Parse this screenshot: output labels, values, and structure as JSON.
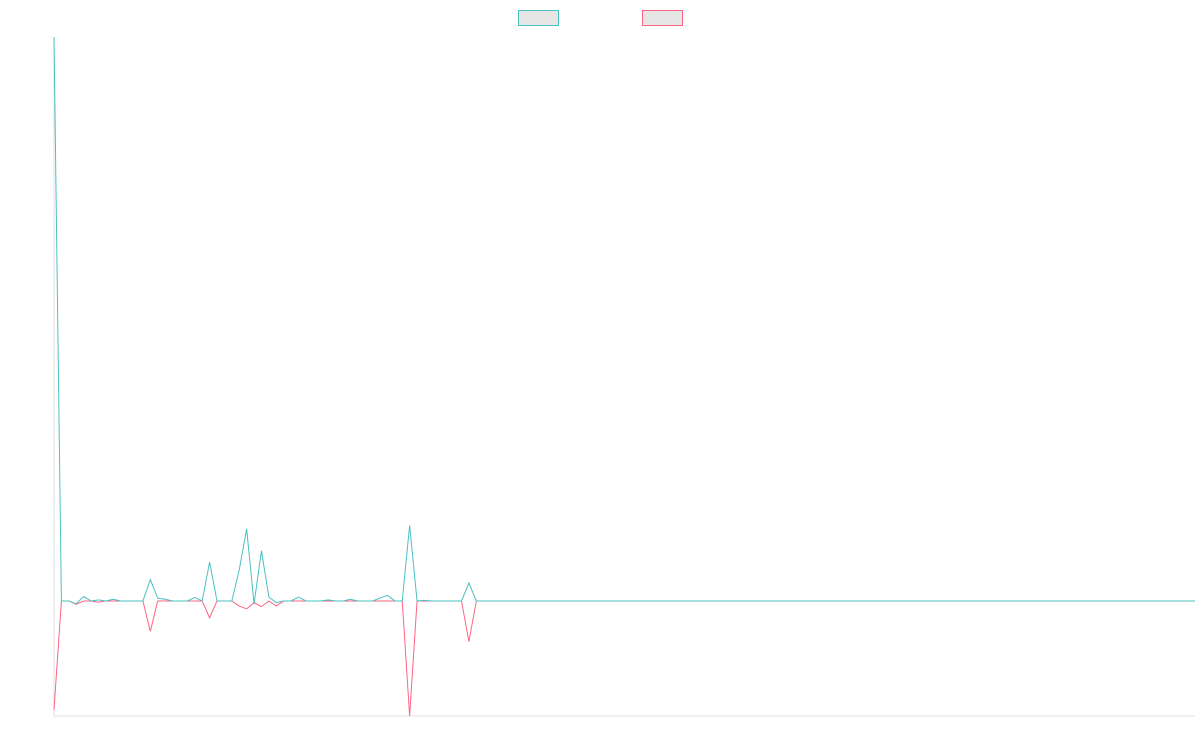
{
  "chart_data": {
    "type": "line",
    "x": [
      0,
      1,
      2,
      3,
      4,
      5,
      6,
      7,
      8,
      9,
      12,
      13,
      14,
      15,
      16,
      18,
      19,
      20,
      21,
      22,
      24,
      25,
      26,
      27,
      28,
      29,
      30,
      31,
      32,
      33,
      34,
      36,
      37,
      38,
      39,
      40,
      41,
      43,
      44,
      45,
      46,
      47,
      48,
      49,
      50,
      51,
      55,
      56,
      57,
      154
    ],
    "xlim": [
      0,
      154
    ],
    "ylim": [
      -20.4,
      100
    ],
    "grid": false,
    "legend": "top",
    "series": [
      {
        "color": "#4bc0c0",
        "values": [
          100,
          0,
          0,
          -0.5,
          0.8,
          0,
          0.2,
          0,
          0.3,
          0,
          0,
          3.8,
          0.5,
          0.3,
          0,
          0,
          0.6,
          0,
          6.9,
          0,
          0,
          5.5,
          12.8,
          -0.5,
          8.9,
          0.7,
          -0.3,
          0,
          0,
          0.7,
          0,
          0,
          0.2,
          0,
          0,
          0.3,
          0,
          0,
          0.5,
          1.0,
          0,
          0,
          13.4,
          0,
          0.1,
          0,
          0,
          3.2,
          0,
          0
        ]
      },
      {
        "color": "#ff6384",
        "values": [
          -19.3,
          0,
          0,
          -0.6,
          0,
          0,
          -0.2,
          0,
          0,
          0,
          0,
          -5.4,
          0,
          0,
          0,
          0,
          0,
          0,
          -3,
          0,
          0,
          -0.9,
          -1.4,
          -0.3,
          -1,
          0,
          -0.9,
          0,
          0,
          0,
          0,
          0,
          0,
          0,
          0,
          0,
          0,
          0,
          0,
          0,
          0,
          0,
          -20.4,
          0,
          0,
          0,
          0,
          -7.2,
          0,
          0
        ]
      }
    ]
  }
}
